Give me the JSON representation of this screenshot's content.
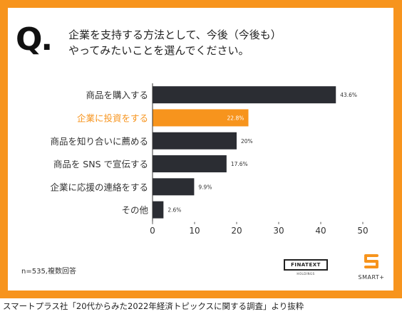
{
  "question": {
    "mark": "Q.",
    "line1": "企業を支持する方法として、今後（今後も）",
    "line2": "やってみたいことを選んでください。"
  },
  "colors": {
    "frame": "#f7941d",
    "bar_default": "#2b2d33",
    "bar_highlight": "#f7941d",
    "label_highlight": "#f7941d"
  },
  "chart_data": {
    "type": "bar",
    "orientation": "horizontal",
    "categories": [
      "商品を購入する",
      "企業に投資をする",
      "商品を知り合いに薦める",
      "商品を SNS で宣伝する",
      "企業に応援の連絡をする",
      "その他"
    ],
    "values": [
      43.6,
      22.8,
      20,
      17.6,
      9.9,
      2.6
    ],
    "value_labels": [
      "43.6%",
      "22.8%",
      "20%",
      "17.6%",
      "9.9%",
      "2.6%"
    ],
    "highlight_index": 1,
    "xlim": [
      0,
      50
    ],
    "xticks": [
      "0",
      "10",
      "20",
      "30",
      "40",
      "50"
    ],
    "grid": false
  },
  "footnote": "n=535,複数回答",
  "logos": {
    "finatext": "FINATEXT",
    "finatext_sub": "HOLDINGS",
    "smart": "SMART+"
  },
  "caption": "スマートプラス社「20代からみた2022年経済トピックスに関する調査」より抜粋"
}
